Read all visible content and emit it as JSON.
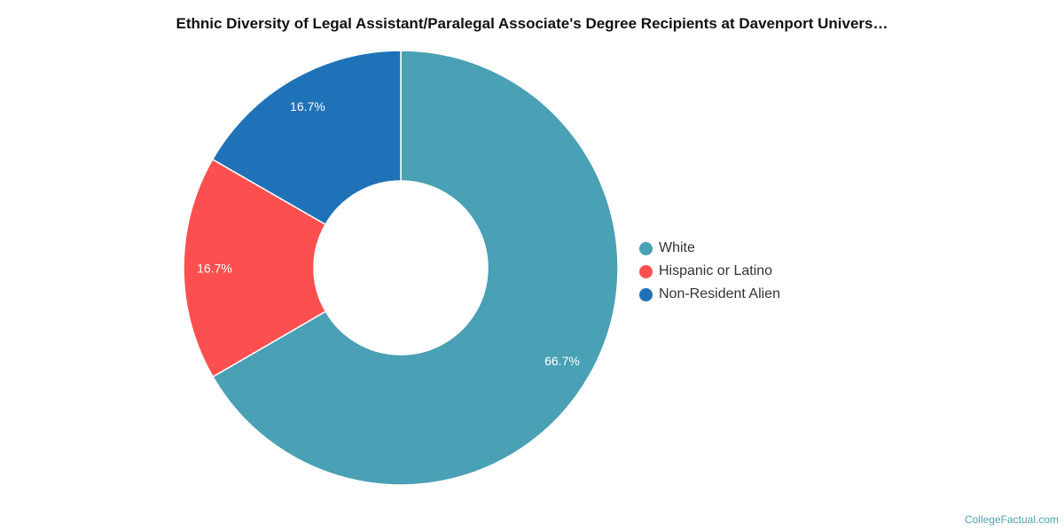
{
  "chart_data": {
    "type": "pie",
    "title": "Ethnic Diversity of Legal Assistant/Paralegal Associate's Degree Recipients at Davenport Univers…",
    "categories": [
      "White",
      "Hispanic or Latino",
      "Non-Resident Alien"
    ],
    "values": [
      66.7,
      16.7,
      16.7
    ],
    "data_labels": [
      "66.7%",
      "16.7%",
      "16.7%"
    ],
    "colors": [
      "#4aa0b4",
      "#fc5050",
      "#1f72b8"
    ],
    "donut": true,
    "legend_position": "right"
  },
  "watermark": "CollegeFactual.com"
}
